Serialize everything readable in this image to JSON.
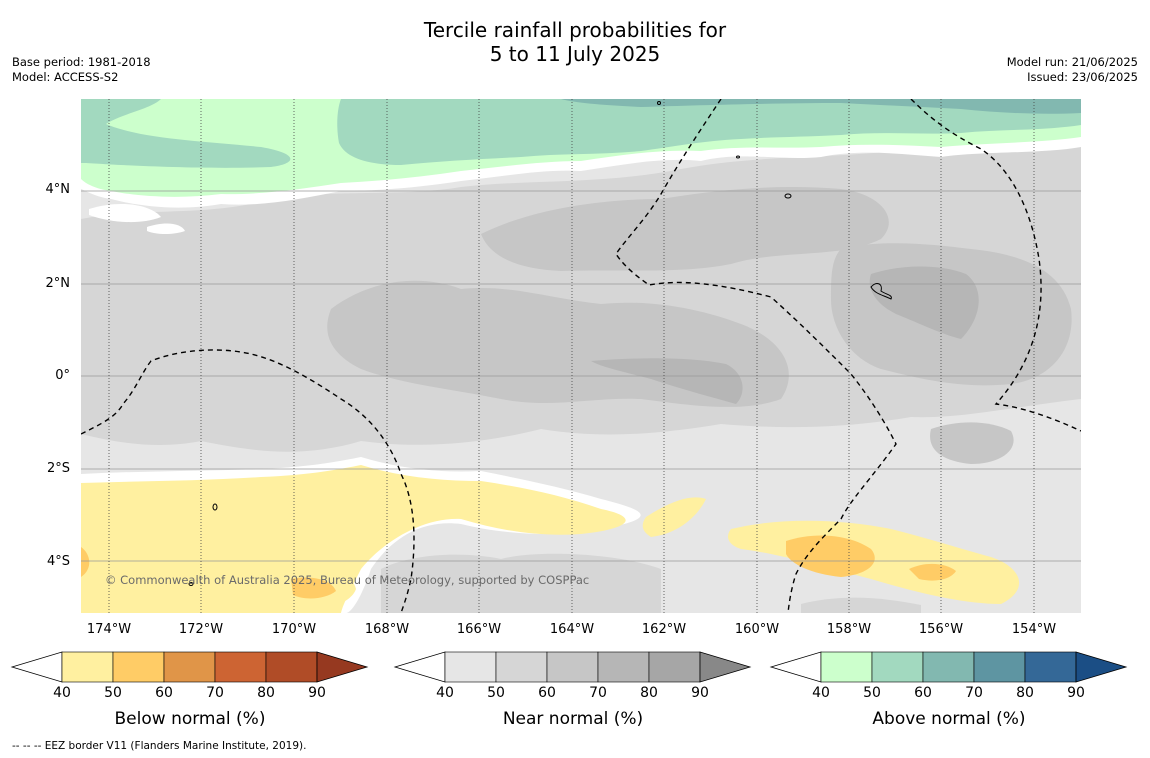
{
  "title_line1": "Tercile rainfall probabilities for",
  "title_line2": "5 to 11 July 2025",
  "meta_left": {
    "base_period": "Base period: 1981-2018",
    "model": "Model: ACCESS-S2"
  },
  "meta_right": {
    "model_run": "Model run: 21/06/2025",
    "issued": "Issued: 23/06/2025"
  },
  "lat_labels": [
    "4°N",
    "2°N",
    "0°",
    "2°S",
    "4°S"
  ],
  "lon_labels": [
    "174°W",
    "172°W",
    "170°W",
    "168°W",
    "166°W",
    "164°W",
    "162°W",
    "160°W",
    "158°W",
    "156°W",
    "154°W"
  ],
  "copyright": "© Commonwealth of Australia 2025, Bureau of Meteorology, supported by COSPPac",
  "footnote": "--  --  -- EEZ border V11 (Flanders Marine Institute, 2019).",
  "colorbars": [
    {
      "title": "Below normal (%)",
      "ticks": [
        "40",
        "50",
        "60",
        "70",
        "80",
        "90"
      ],
      "colors": [
        "#ffffff",
        "#fff0a0",
        "#ffcc66",
        "#e09548",
        "#cd6433",
        "#b04c27",
        "#963920"
      ]
    },
    {
      "title": "Near normal (%)",
      "ticks": [
        "40",
        "50",
        "60",
        "70",
        "80",
        "90"
      ],
      "colors": [
        "#ffffff",
        "#e6e6e6",
        "#d6d6d6",
        "#c6c6c6",
        "#b6b6b6",
        "#a6a6a6",
        "#888888"
      ]
    },
    {
      "title": "Above normal (%)",
      "ticks": [
        "40",
        "50",
        "60",
        "70",
        "80",
        "90"
      ],
      "colors": [
        "#ffffff",
        "#ccffcc",
        "#a2d9bf",
        "#82b8b0",
        "#5e95a2",
        "#346897",
        "#1b4e85"
      ]
    }
  ]
}
